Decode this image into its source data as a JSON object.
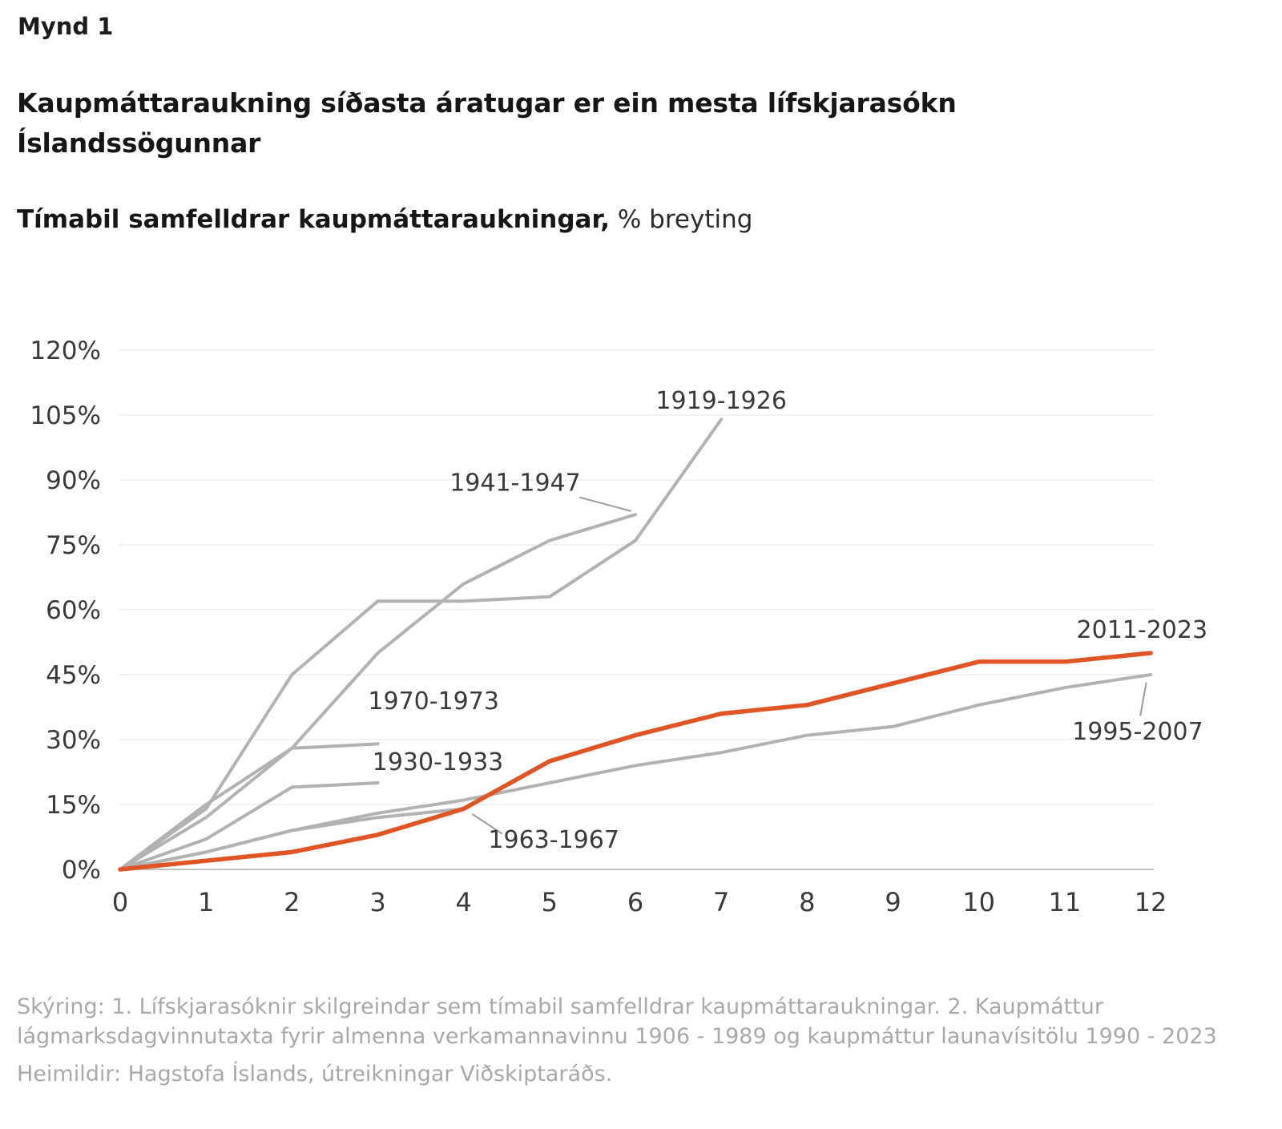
{
  "page": {
    "figure_label": "Mynd 1",
    "title": "Kaupmáttaraukning síðasta áratugar er ein mesta lífskjarasókn Íslandssögunnar",
    "subtitle_bold": "Tímabil samfelldrar kaupmáttaraukningar,",
    "subtitle_regular": "% breyting",
    "footnotes": {
      "skyring": "Skýring: 1. Lífskjarasóknir skilgreindar sem tímabil samfelldrar kaupmáttaraukningar. 2. Kaupmáttur lágmarksdagvinnutaxta fyrir almenna verkamannavinnu 1906 - 1989 og kaupmáttur launavísitölu 1990 - 2023",
      "heimildir": "Heimildir: Hagstofa Íslands, útreikningar Viðskiptaráðs."
    }
  },
  "colors": {
    "accent": "#e05526",
    "gray_line": "#b2b2b2",
    "grid": "#ededed",
    "axis": "#c0c0c0",
    "tick_text": "#3a3a3a",
    "connector": "#9d9d9d"
  },
  "chart_data": {
    "type": "line",
    "title": "Tímabil samfelldrar kaupmáttaraukningar",
    "unit": "% breyting",
    "xlabel": "",
    "ylabel": "",
    "xlim": [
      0,
      12
    ],
    "ylim": [
      0,
      120
    ],
    "xticks": [
      0,
      1,
      2,
      3,
      4,
      5,
      6,
      7,
      8,
      9,
      10,
      11,
      12
    ],
    "yticks": [
      0,
      15,
      30,
      45,
      60,
      75,
      90,
      105,
      120
    ],
    "ytick_suffix": "%",
    "grid": "horizontal",
    "legend": "inline-labels",
    "x_start": 0,
    "x_step": 1,
    "series": [
      {
        "name": "1919-1926",
        "color": "gray",
        "values": [
          0,
          14,
          45,
          62,
          62,
          63,
          76,
          104
        ]
      },
      {
        "name": "1941-1947",
        "color": "gray",
        "values": [
          0,
          12,
          28,
          50,
          66,
          76,
          82
        ]
      },
      {
        "name": "1970-1973",
        "color": "gray",
        "values": [
          0,
          15,
          28,
          29
        ]
      },
      {
        "name": "1930-1933",
        "color": "gray",
        "values": [
          0,
          7,
          19,
          20
        ]
      },
      {
        "name": "1963-1967",
        "color": "gray",
        "values": [
          0,
          4,
          9,
          12,
          14
        ]
      },
      {
        "name": "1995-2007",
        "color": "gray",
        "values": [
          0,
          4,
          9,
          13,
          16,
          20,
          24,
          27,
          31,
          33,
          38,
          42,
          45
        ]
      },
      {
        "name": "2011-2023",
        "color": "accent",
        "values": [
          0,
          2,
          4,
          8,
          14,
          25,
          31,
          36,
          38,
          43,
          48,
          48,
          50
        ]
      }
    ],
    "annotations": [
      {
        "text": "1919-1926",
        "x": 7.0,
        "y": 106.5
      },
      {
        "text": "1941-1947",
        "x": 4.6,
        "y": 87.5
      },
      {
        "text": "1970-1973",
        "x": 3.65,
        "y": 37
      },
      {
        "text": "1930-1933",
        "x": 3.7,
        "y": 23
      },
      {
        "text": "1963-1967",
        "x": 5.05,
        "y": 5
      },
      {
        "text": "2011-2023",
        "x": 11.9,
        "y": 53.5
      },
      {
        "text": "1995-2007",
        "x": 11.85,
        "y": 30
      }
    ],
    "connectors": [
      {
        "x1": 5.35,
        "y1": 86,
        "x2": 5.95,
        "y2": 82.8
      },
      {
        "x1": 4.45,
        "y1": 8.2,
        "x2": 4.1,
        "y2": 12.8
      },
      {
        "x1": 11.95,
        "y1": 43.2,
        "x2": 11.88,
        "y2": 35.5
      }
    ]
  }
}
